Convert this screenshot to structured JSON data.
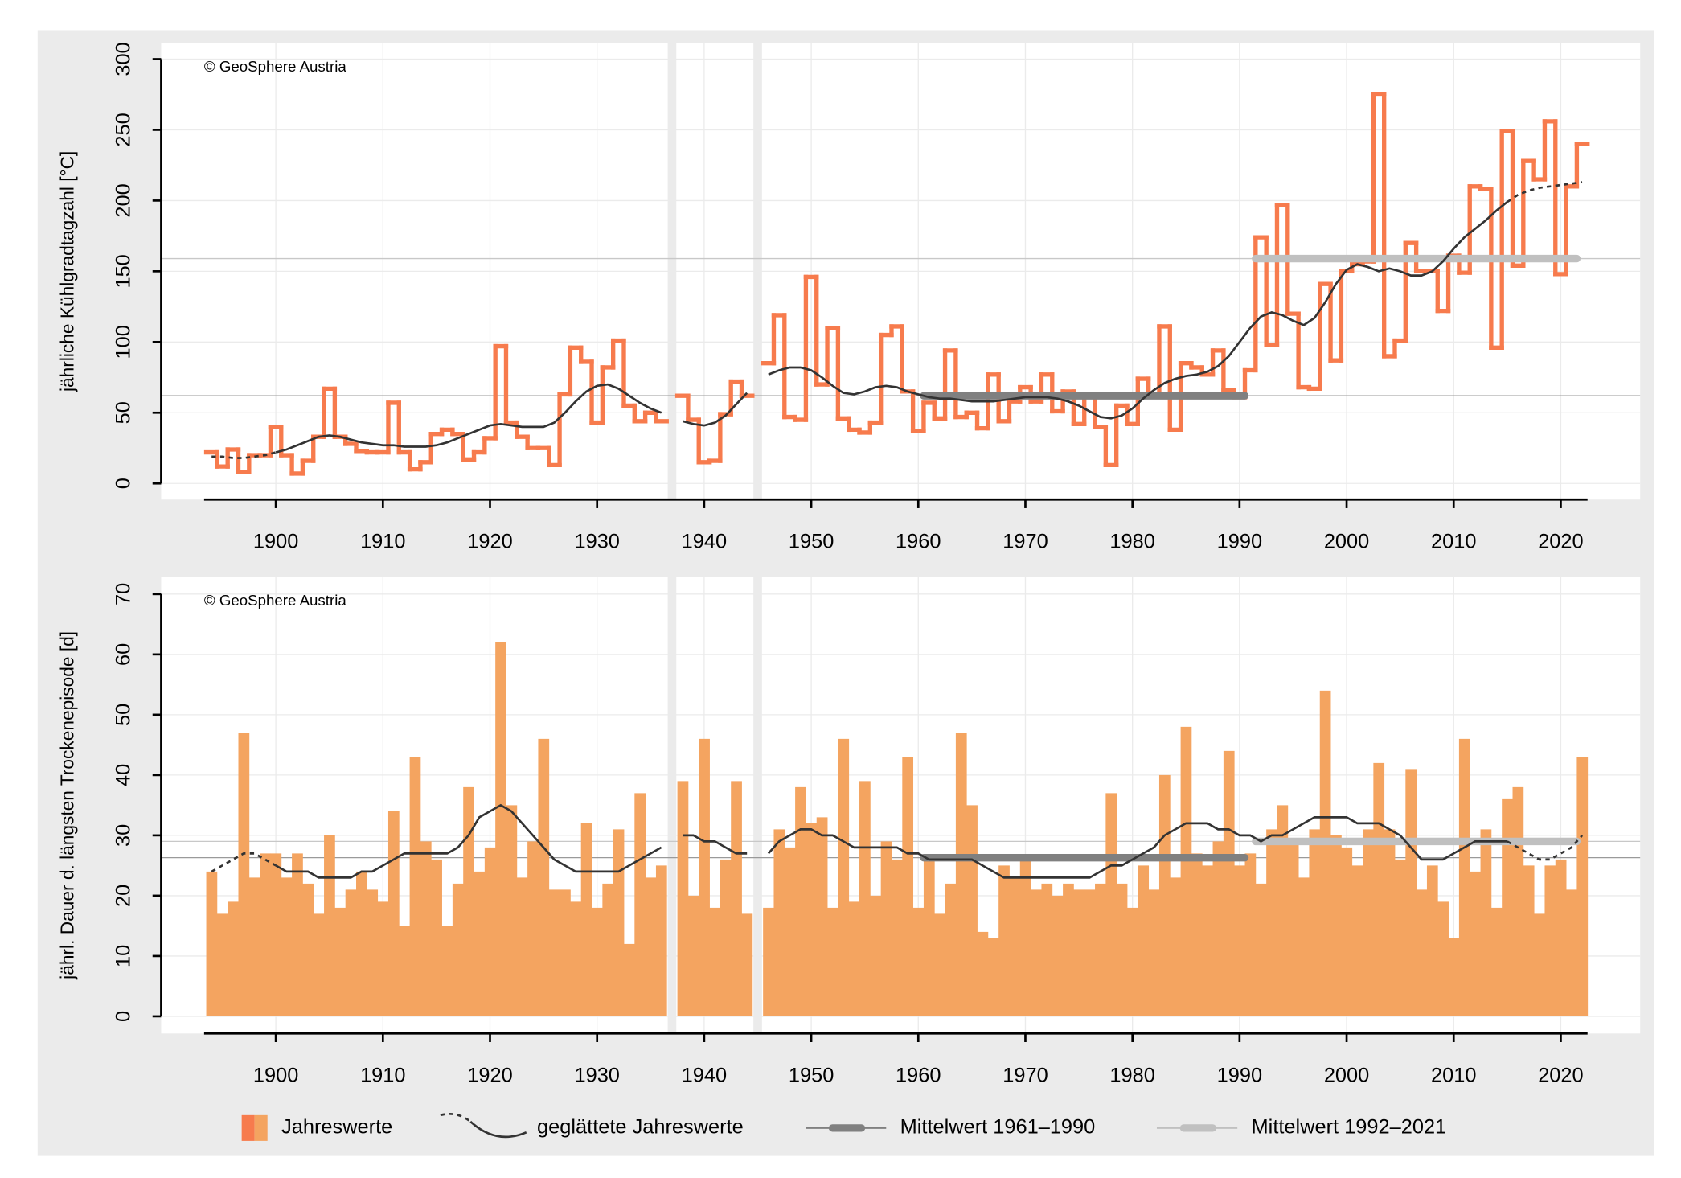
{
  "chart_data": [
    {
      "type": "step",
      "annotation": "© GeoSphere Austria",
      "y_label": "jährliche Kühlgradtagzahl [°C]",
      "xlim": [
        1893.3,
        2022.5
      ],
      "ylim": [
        0,
        300
      ],
      "xticks": [
        1900,
        1910,
        1920,
        1930,
        1940,
        1950,
        1960,
        1970,
        1980,
        1990,
        2000,
        2010,
        2020
      ],
      "yticks": [
        0,
        50,
        100,
        150,
        200,
        250,
        300
      ],
      "grid": true,
      "x": [
        1894,
        1895,
        1896,
        1897,
        1898,
        1899,
        1900,
        1901,
        1902,
        1903,
        1904,
        1905,
        1906,
        1907,
        1908,
        1909,
        1910,
        1911,
        1912,
        1913,
        1914,
        1915,
        1916,
        1917,
        1918,
        1919,
        1920,
        1921,
        1922,
        1923,
        1924,
        1925,
        1926,
        1927,
        1928,
        1929,
        1930,
        1931,
        1932,
        1933,
        1934,
        1935,
        1936,
        1937,
        1938,
        1939,
        1940,
        1941,
        1942,
        1943,
        1944,
        1945,
        1946,
        1947,
        1948,
        1949,
        1950,
        1951,
        1952,
        1953,
        1954,
        1955,
        1956,
        1957,
        1958,
        1959,
        1960,
        1961,
        1962,
        1963,
        1964,
        1965,
        1966,
        1967,
        1968,
        1969,
        1970,
        1971,
        1972,
        1973,
        1974,
        1975,
        1976,
        1977,
        1978,
        1979,
        1980,
        1981,
        1982,
        1983,
        1984,
        1985,
        1986,
        1987,
        1988,
        1989,
        1990,
        1991,
        1992,
        1993,
        1994,
        1995,
        1996,
        1997,
        1998,
        1999,
        2000,
        2001,
        2002,
        2003,
        2004,
        2005,
        2006,
        2007,
        2008,
        2009,
        2010,
        2011,
        2012,
        2013,
        2014,
        2015,
        2016,
        2017,
        2018,
        2019,
        2020,
        2021,
        2022
      ],
      "series": [
        {
          "type": "step",
          "color": "#f77b4d",
          "values": [
            22,
            12,
            24,
            8,
            20,
            20,
            40,
            20,
            7,
            16,
            33,
            67,
            33,
            28,
            23,
            22,
            22,
            57,
            22,
            10,
            15,
            35,
            38,
            35,
            17,
            22,
            32,
            97,
            43,
            33,
            25,
            25,
            13,
            63,
            96,
            86,
            43,
            82,
            101,
            55,
            44,
            50,
            44,
            null,
            62,
            45,
            15,
            16,
            49,
            72,
            62,
            null,
            85,
            119,
            47,
            45,
            146,
            70,
            110,
            46,
            38,
            36,
            43,
            105,
            111,
            65,
            37,
            57,
            46,
            94,
            47,
            50,
            39,
            77,
            44,
            58,
            68,
            58,
            77,
            51,
            65,
            42,
            62,
            40,
            13,
            55,
            42,
            74,
            63,
            111,
            38,
            85,
            82,
            77,
            94,
            66,
            61,
            80,
            174,
            98,
            197,
            120,
            68,
            67,
            141,
            87,
            150,
            155,
            157,
            275,
            90,
            101,
            170,
            150,
            150,
            122,
            161,
            149,
            210,
            208,
            96,
            249,
            154,
            228,
            215,
            256,
            148,
            210,
            240
          ]
        },
        {
          "type": "line",
          "color": "#333333",
          "values": [
            19,
            19,
            18,
            18,
            19,
            20,
            22,
            24,
            27,
            30,
            33,
            34,
            33,
            31,
            29,
            28,
            27,
            27,
            26,
            26,
            26,
            27,
            29,
            32,
            35,
            38,
            41,
            42,
            41,
            40,
            40,
            40,
            43,
            50,
            58,
            65,
            69,
            70,
            67,
            62,
            57,
            53,
            50,
            null,
            44,
            42,
            41,
            43,
            48,
            56,
            64,
            null,
            77,
            80,
            82,
            82,
            80,
            75,
            69,
            64,
            63,
            65,
            68,
            69,
            68,
            65,
            63,
            61,
            60,
            60,
            59,
            58,
            58,
            58,
            59,
            60,
            61,
            61,
            61,
            60,
            58,
            55,
            51,
            47,
            46,
            48,
            53,
            60,
            66,
            71,
            74,
            76,
            77,
            79,
            83,
            90,
            100,
            110,
            118,
            121,
            119,
            115,
            112,
            117,
            128,
            141,
            151,
            155,
            153,
            150,
            152,
            150,
            147,
            147,
            150,
            157,
            166,
            174,
            180,
            186,
            193,
            199,
            204,
            207,
            209,
            210,
            211,
            212,
            213
          ]
        },
        {
          "type": "mean",
          "color": "#808080",
          "x": [
            1961,
            1990
          ],
          "values": [
            62,
            62
          ]
        },
        {
          "type": "mean",
          "color": "#c0c0c0",
          "x": [
            1992,
            2021
          ],
          "values": [
            159,
            159
          ]
        }
      ]
    },
    {
      "type": "bar",
      "annotation": "© GeoSphere Austria",
      "y_label": "jährl. Dauer d. längsten Trockenepisode [d]",
      "xlim": [
        1893.3,
        2022.5
      ],
      "ylim": [
        0,
        70
      ],
      "xticks": [
        1900,
        1910,
        1920,
        1930,
        1940,
        1950,
        1960,
        1970,
        1980,
        1990,
        2000,
        2010,
        2020
      ],
      "yticks": [
        0,
        10,
        20,
        30,
        40,
        50,
        60,
        70
      ],
      "grid": true,
      "x": [
        1894,
        1895,
        1896,
        1897,
        1898,
        1899,
        1900,
        1901,
        1902,
        1903,
        1904,
        1905,
        1906,
        1907,
        1908,
        1909,
        1910,
        1911,
        1912,
        1913,
        1914,
        1915,
        1916,
        1917,
        1918,
        1919,
        1920,
        1921,
        1922,
        1923,
        1924,
        1925,
        1926,
        1927,
        1928,
        1929,
        1930,
        1931,
        1932,
        1933,
        1934,
        1935,
        1936,
        1937,
        1938,
        1939,
        1940,
        1941,
        1942,
        1943,
        1944,
        1945,
        1946,
        1947,
        1948,
        1949,
        1950,
        1951,
        1952,
        1953,
        1954,
        1955,
        1956,
        1957,
        1958,
        1959,
        1960,
        1961,
        1962,
        1963,
        1964,
        1965,
        1966,
        1967,
        1968,
        1969,
        1970,
        1971,
        1972,
        1973,
        1974,
        1975,
        1976,
        1977,
        1978,
        1979,
        1980,
        1981,
        1982,
        1983,
        1984,
        1985,
        1986,
        1987,
        1988,
        1989,
        1990,
        1991,
        1992,
        1993,
        1994,
        1995,
        1996,
        1997,
        1998,
        1999,
        2000,
        2001,
        2002,
        2003,
        2004,
        2005,
        2006,
        2007,
        2008,
        2009,
        2010,
        2011,
        2012,
        2013,
        2014,
        2015,
        2016,
        2017,
        2018,
        2019,
        2020,
        2021,
        2022
      ],
      "series": [
        {
          "type": "bar",
          "name": "Jahreswerte",
          "color": "#f4a460",
          "values": [
            24,
            17,
            19,
            47,
            23,
            27,
            27,
            23,
            27,
            22,
            17,
            30,
            18,
            21,
            24,
            21,
            19,
            34,
            15,
            43,
            29,
            26,
            15,
            22,
            38,
            24,
            28,
            62,
            35,
            23,
            29,
            46,
            21,
            21,
            19,
            32,
            18,
            22,
            31,
            12,
            37,
            23,
            25,
            null,
            39,
            20,
            46,
            18,
            26,
            39,
            17,
            null,
            18,
            31,
            28,
            38,
            32,
            33,
            18,
            46,
            19,
            39,
            20,
            29,
            26,
            43,
            18,
            26,
            17,
            22,
            47,
            35,
            14,
            13,
            25,
            23,
            26,
            21,
            22,
            20,
            22,
            21,
            21,
            22,
            37,
            22,
            18,
            25,
            21,
            40,
            23,
            48,
            27,
            25,
            29,
            44,
            25,
            27,
            22,
            31,
            35,
            29,
            23,
            31,
            54,
            30,
            28,
            25,
            31,
            42,
            31,
            26,
            41,
            21,
            25,
            19,
            13,
            46,
            24,
            31,
            18,
            36,
            38,
            25,
            17,
            25,
            26,
            21,
            43
          ]
        },
        {
          "type": "line",
          "name": "geglättete Jahreswerte",
          "color": "#333333",
          "values": [
            24,
            25,
            26,
            27,
            27,
            26,
            25,
            24,
            24,
            24,
            23,
            23,
            23,
            23,
            24,
            24,
            25,
            26,
            27,
            27,
            27,
            27,
            27,
            28,
            30,
            33,
            34,
            35,
            34,
            32,
            30,
            28,
            26,
            25,
            24,
            24,
            24,
            24,
            24,
            25,
            26,
            27,
            28,
            null,
            30,
            30,
            29,
            29,
            28,
            27,
            27,
            null,
            27,
            29,
            30,
            31,
            31,
            30,
            30,
            29,
            28,
            28,
            28,
            28,
            28,
            27,
            27,
            26,
            26,
            26,
            26,
            26,
            25,
            24,
            23,
            23,
            23,
            23,
            23,
            23,
            23,
            23,
            23,
            24,
            25,
            25,
            26,
            27,
            28,
            30,
            31,
            32,
            32,
            32,
            31,
            31,
            30,
            30,
            29,
            30,
            30,
            31,
            32,
            33,
            33,
            33,
            33,
            32,
            32,
            32,
            31,
            30,
            28,
            26,
            26,
            26,
            27,
            28,
            29,
            29,
            29,
            29,
            28,
            27,
            26,
            26,
            27,
            28,
            30
          ]
        },
        {
          "type": "mean",
          "name": "Mittelwert 1961–1990",
          "color": "#808080",
          "x": [
            1961,
            1990
          ],
          "values": [
            26.3,
            26.3
          ]
        },
        {
          "type": "mean",
          "name": "Mittelwert 1992–2021",
          "color": "#c0c0c0",
          "x": [
            1992,
            2021
          ],
          "values": [
            29,
            29
          ]
        }
      ]
    }
  ]
}
